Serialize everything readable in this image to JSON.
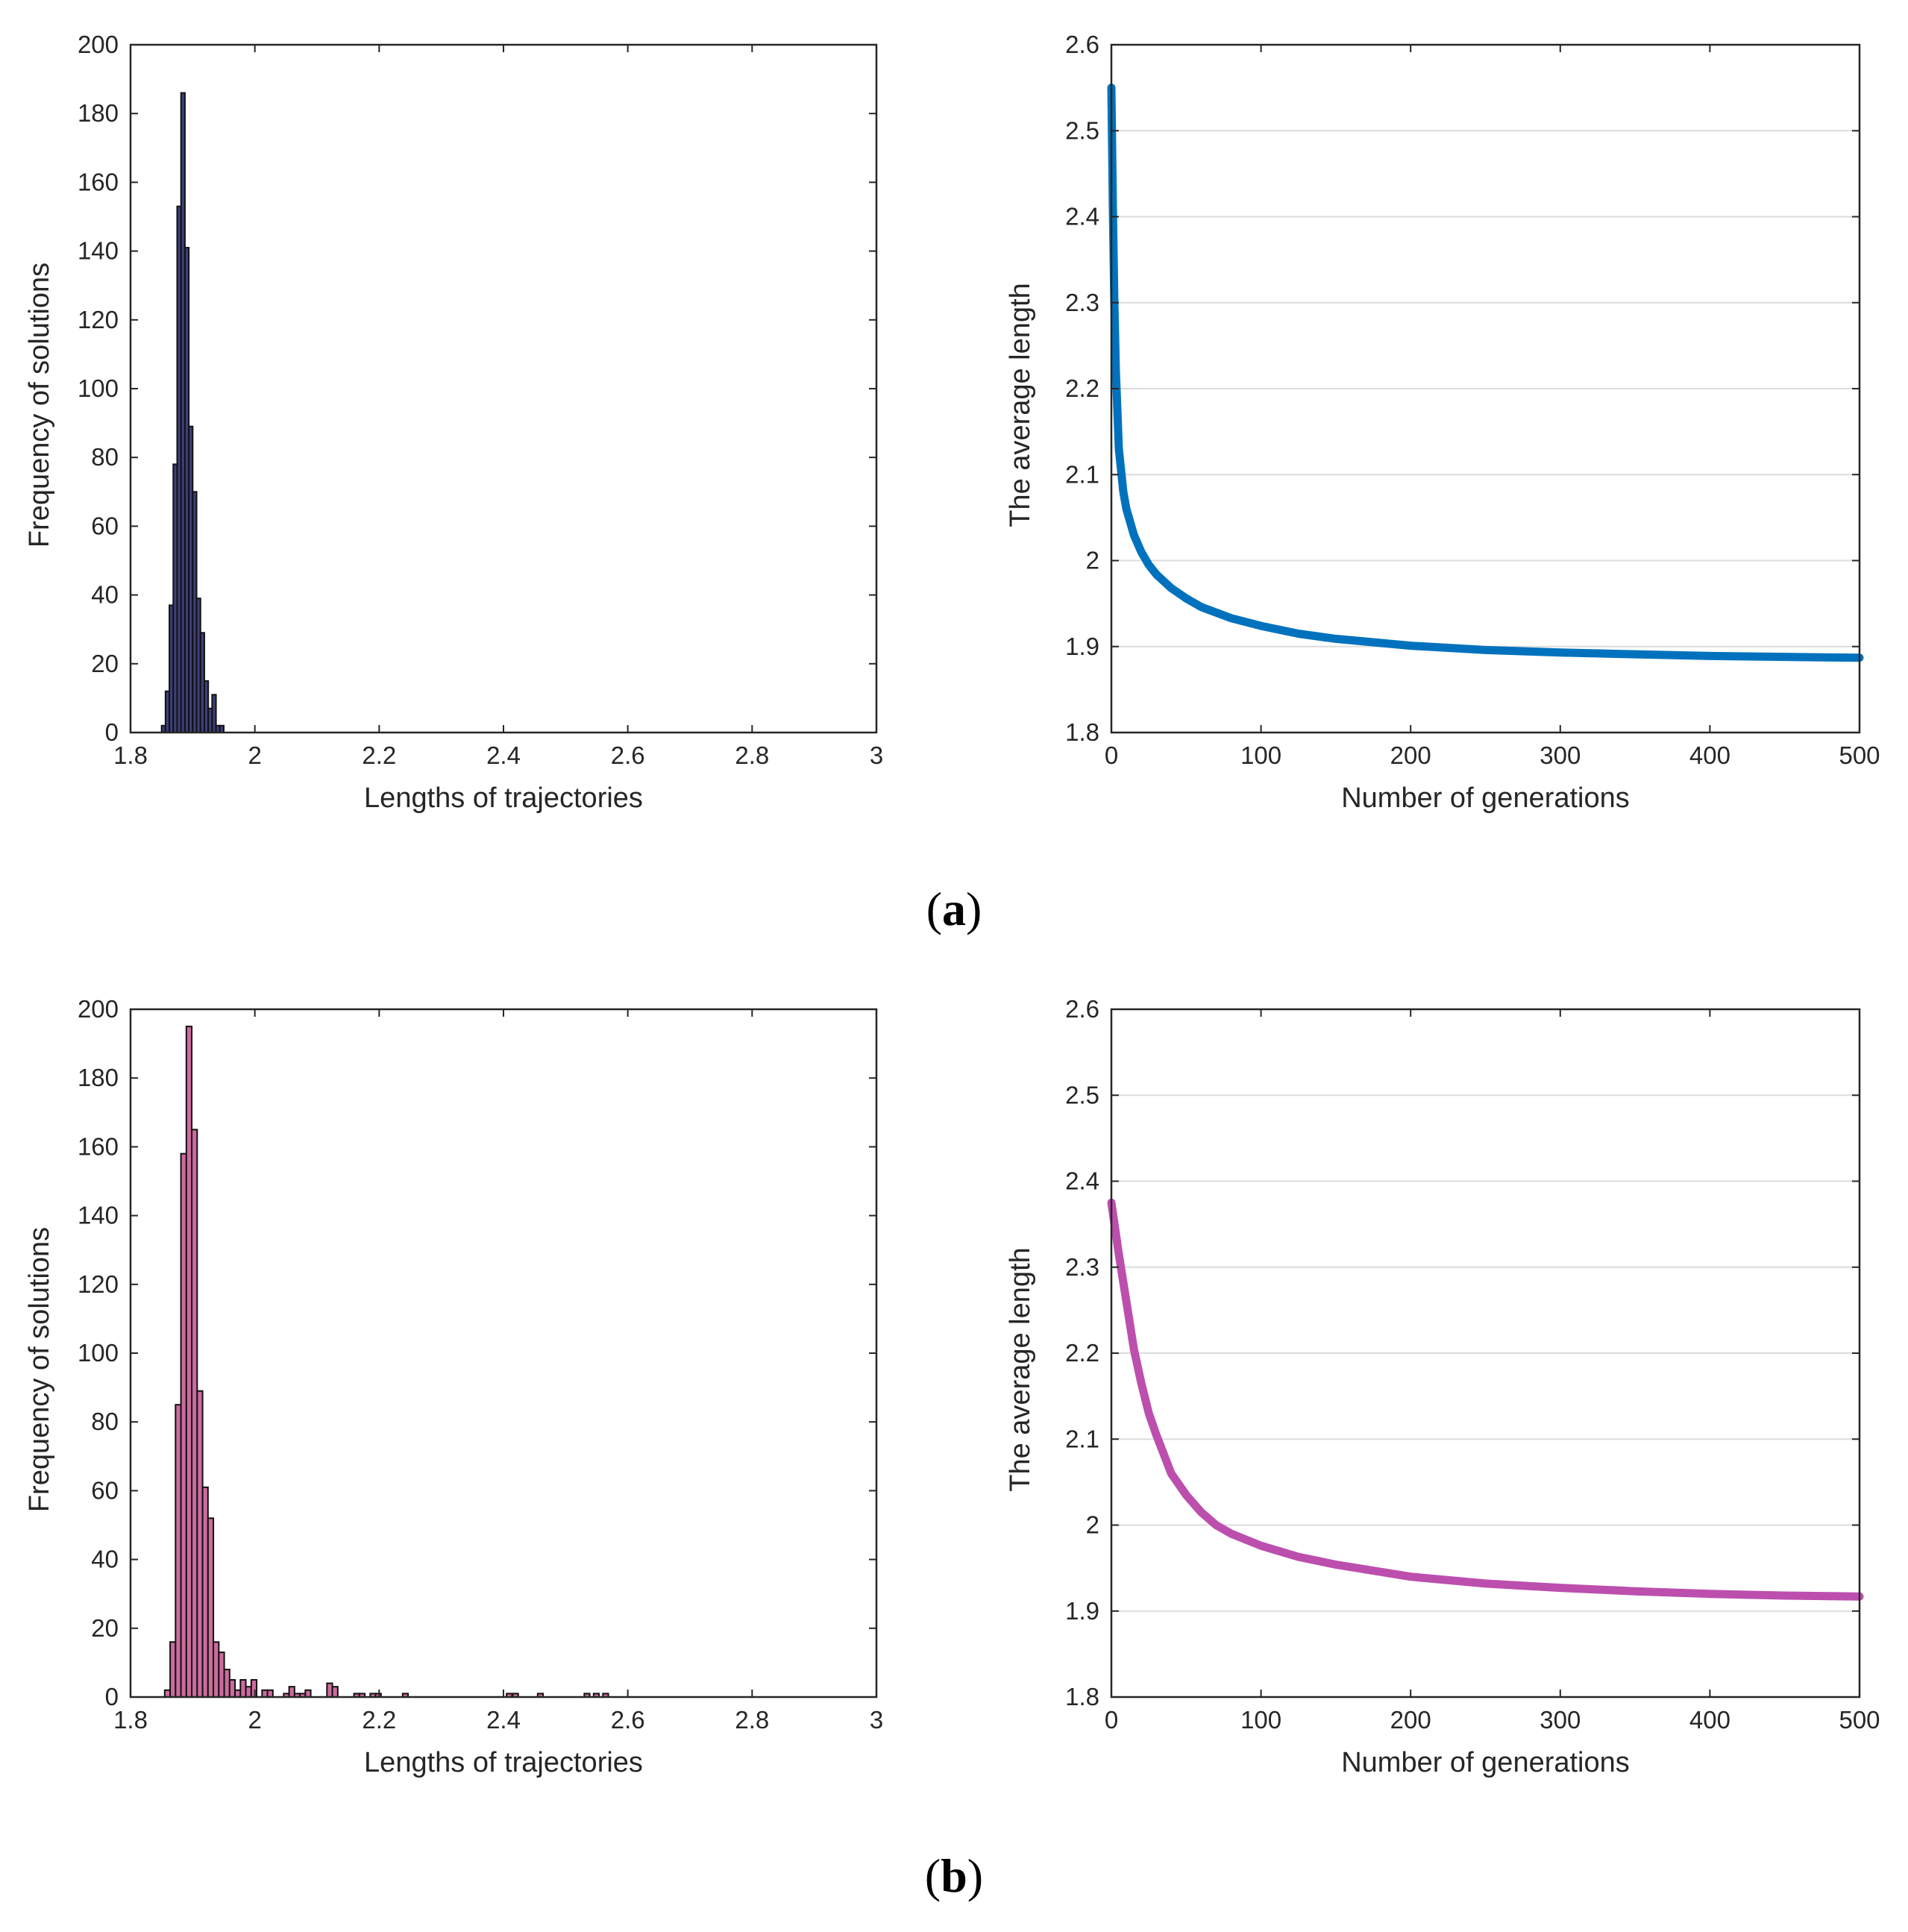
{
  "figure": {
    "captions": [
      "a",
      "b"
    ]
  },
  "chart_data": [
    {
      "id": "a-hist",
      "type": "bar",
      "panel": "a",
      "xlabel": "Lengths of trajectories",
      "ylabel": "Frequency of solutions",
      "xlim": [
        1.8,
        3
      ],
      "ylim": [
        0,
        200
      ],
      "xticks": [
        "1.8",
        "2",
        "2.2",
        "2.4",
        "2.6",
        "2.8",
        "3"
      ],
      "yticks": [
        "0",
        "20",
        "40",
        "60",
        "80",
        "100",
        "120",
        "140",
        "160",
        "180",
        "200"
      ],
      "grid": false,
      "bar_color": "#3d3f7a",
      "bin_start": 1.85,
      "bin_width": 0.00625,
      "values": [
        2,
        12,
        37,
        78,
        153,
        186,
        141,
        89,
        70,
        39,
        29,
        15,
        7,
        11,
        2,
        2
      ]
    },
    {
      "id": "a-line",
      "type": "line",
      "panel": "a",
      "xlabel": "Number of generations",
      "ylabel": "The average length",
      "xlim": [
        0,
        500
      ],
      "ylim": [
        1.8,
        2.6
      ],
      "xticks": [
        "0",
        "100",
        "200",
        "300",
        "400",
        "500"
      ],
      "yticks": [
        "1.8",
        "1.9",
        "2",
        "2.1",
        "2.2",
        "2.3",
        "2.4",
        "2.5",
        "2.6"
      ],
      "grid": true,
      "color": "#0072bd",
      "x": [
        0,
        1,
        2,
        3,
        5,
        8,
        10,
        15,
        20,
        25,
        30,
        40,
        50,
        60,
        80,
        100,
        125,
        150,
        200,
        250,
        300,
        350,
        400,
        450,
        500
      ],
      "y": [
        2.55,
        2.41,
        2.3,
        2.22,
        2.13,
        2.08,
        2.06,
        2.03,
        2.01,
        1.995,
        1.984,
        1.968,
        1.956,
        1.946,
        1.933,
        1.924,
        1.915,
        1.909,
        1.901,
        1.896,
        1.893,
        1.891,
        1.889,
        1.888,
        1.887
      ]
    },
    {
      "id": "b-hist",
      "type": "bar",
      "panel": "b",
      "xlabel": "Lengths of trajectories",
      "ylabel": "Frequency of solutions",
      "xlim": [
        1.8,
        3
      ],
      "ylim": [
        0,
        200
      ],
      "xticks": [
        "1.8",
        "2",
        "2.2",
        "2.4",
        "2.6",
        "2.8",
        "3"
      ],
      "yticks": [
        "0",
        "20",
        "40",
        "60",
        "80",
        "100",
        "120",
        "140",
        "160",
        "180",
        "200"
      ],
      "grid": false,
      "bar_color": "#cc6b9e",
      "bin_start": 1.855,
      "bin_width": 0.0087,
      "values": [
        2,
        16,
        85,
        158,
        195,
        165,
        89,
        61,
        52,
        16,
        13,
        8,
        5,
        2,
        5,
        3,
        5,
        0,
        2,
        2,
        0,
        0,
        1,
        3,
        1,
        1,
        2,
        0,
        0,
        0,
        4,
        3,
        0,
        0,
        0,
        1,
        1,
        0,
        1,
        1,
        0,
        0,
        0,
        0,
        1
      ],
      "extra_bars": [
        {
          "x": 2.405,
          "value": 1
        },
        {
          "x": 2.415,
          "value": 1
        },
        {
          "x": 2.455,
          "value": 1
        },
        {
          "x": 2.53,
          "value": 1
        },
        {
          "x": 2.545,
          "value": 1
        },
        {
          "x": 2.56,
          "value": 1
        }
      ]
    },
    {
      "id": "b-line",
      "type": "line",
      "panel": "b",
      "xlabel": "Number of generations",
      "ylabel": "The average length",
      "xlim": [
        0,
        500
      ],
      "ylim": [
        1.8,
        2.6
      ],
      "xticks": [
        "0",
        "100",
        "200",
        "300",
        "400",
        "500"
      ],
      "yticks": [
        "1.8",
        "1.9",
        "2",
        "2.1",
        "2.2",
        "2.3",
        "2.4",
        "2.5",
        "2.6"
      ],
      "grid": true,
      "color": "#bc4fae",
      "x": [
        0,
        5,
        10,
        15,
        20,
        25,
        30,
        40,
        50,
        60,
        70,
        80,
        100,
        125,
        150,
        200,
        250,
        300,
        350,
        400,
        450,
        500
      ],
      "y": [
        2.375,
        2.315,
        2.26,
        2.205,
        2.165,
        2.13,
        2.105,
        2.06,
        2.035,
        2.015,
        2.0,
        1.99,
        1.976,
        1.963,
        1.954,
        1.94,
        1.932,
        1.927,
        1.923,
        1.92,
        1.918,
        1.917
      ]
    }
  ]
}
